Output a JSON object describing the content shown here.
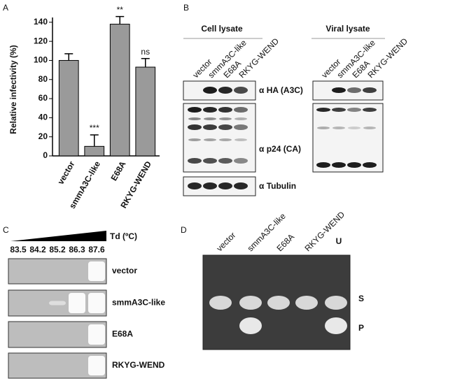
{
  "panels": {
    "a": "A",
    "b": "B",
    "c": "C",
    "d": "D"
  },
  "chart_data": {
    "type": "bar",
    "ylabel": "Relative infectivity (%)",
    "categories": [
      "vector",
      "smmA3C-like",
      "E68A",
      "RKYG-WEND"
    ],
    "series": [
      {
        "values": [
          100,
          10,
          138,
          93
        ],
        "errors": [
          7,
          12,
          8,
          9
        ],
        "color": "#9a9a9a"
      }
    ],
    "annotations": [
      null,
      "***",
      "**",
      "ns"
    ],
    "ylim": [
      0,
      145
    ],
    "yticks": [
      0,
      20,
      40,
      60,
      80,
      100,
      120,
      140
    ]
  },
  "panel_b": {
    "cell_title": "Cell lysate",
    "viral_title": "Viral lysate",
    "lanes": [
      "vector",
      "smmA3C-like",
      "E68A",
      "RKYG-WEND"
    ],
    "blots": [
      "α HA (A3C)",
      "α p24 (CA)",
      "α Tubulin"
    ]
  },
  "panel_c": {
    "axis_label": "Td (ºC)",
    "temperatures": [
      "83.5",
      "84.2",
      "85.2",
      "86.3",
      "87.6"
    ],
    "rows": [
      "vector",
      "smmA3C-like",
      "E68A",
      "RKYG-WEND"
    ]
  },
  "panel_d": {
    "lanes": [
      "vector",
      "smmA3C-like",
      "E68A",
      "RKYG-WEND"
    ],
    "bands": [
      "U",
      "S",
      "P"
    ]
  }
}
